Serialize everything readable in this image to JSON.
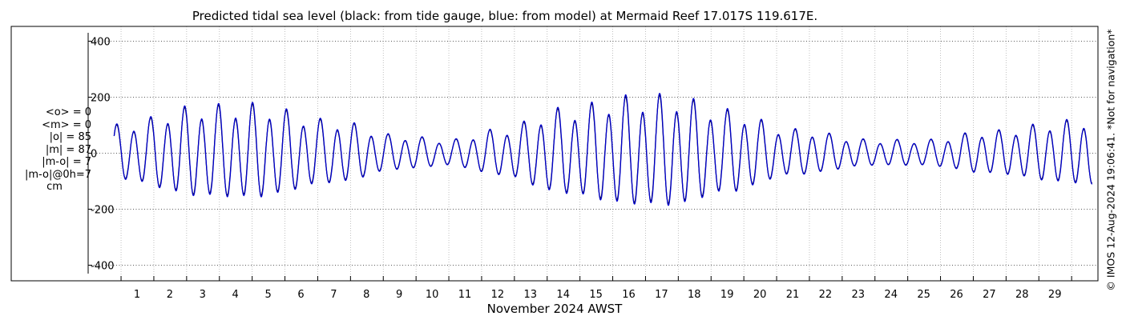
{
  "chart_data": {
    "type": "line",
    "title": "Predicted tidal sea level (black: from tide gauge, blue: from model) at Mermaid Reef 17.017S 119.617E.",
    "xlabel": "November 2024 AWST",
    "ylabel": "",
    "x_ticks": [
      "1",
      "2",
      "3",
      "4",
      "5",
      "6",
      "7",
      "8",
      "9",
      "10",
      "11",
      "12",
      "13",
      "14",
      "15",
      "16",
      "17",
      "18",
      "19",
      "20",
      "21",
      "22",
      "23",
      "24",
      "25",
      "26",
      "27",
      "28",
      "29"
    ],
    "xlim_days": [
      0.2,
      30.2
    ],
    "ylim": [
      -430,
      430
    ],
    "y_ticks": [
      400,
      200,
      0,
      -200,
      -400
    ],
    "grid": true,
    "amplitude_envelope": {
      "day": [
        0.3,
        3,
        4.5,
        7,
        9,
        10.5,
        12,
        14,
        16,
        17.3,
        19,
        21,
        23.5,
        25,
        27,
        29.5,
        30.2
      ],
      "amplitude_cm": [
        95,
        160,
        165,
        110,
        60,
        45,
        80,
        150,
        190,
        195,
        145,
        80,
        45,
        45,
        75,
        110,
        120
      ]
    },
    "diurnal_ratio": 0.18,
    "series": [
      {
        "name": "black: from tide gauge",
        "color": "#000000"
      },
      {
        "name": "blue: from model",
        "color": "#0000cc"
      }
    ]
  },
  "stats": {
    "line1": "<o> = 0",
    "line2": "<m> = 0",
    "line3": "|o| = 85",
    "line4": "|m| = 87",
    "line5": "|m-o| = 7",
    "line6": "|m-o|@0h=7",
    "unit": "cm"
  },
  "credit": "© IMOS 12-Aug-2024 19:06:41. *Not for navigation*"
}
